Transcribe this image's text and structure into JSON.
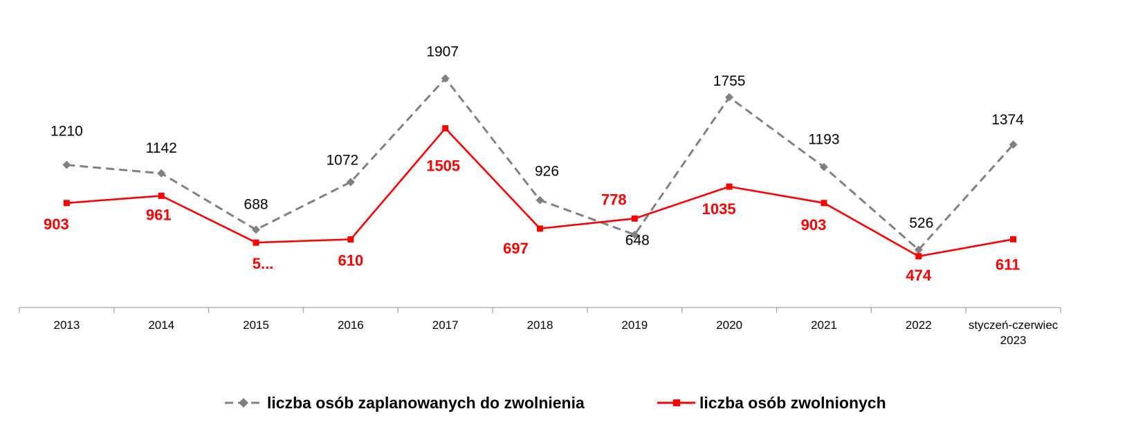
{
  "chart_data": {
    "type": "line",
    "title": "",
    "xlabel": "",
    "ylabel": "",
    "ylim": [
      0,
      2100
    ],
    "grid": false,
    "legend_position": "bottom",
    "categories": [
      [
        "2013"
      ],
      [
        "2014"
      ],
      [
        "2015"
      ],
      [
        "2016"
      ],
      [
        "2017"
      ],
      [
        "2018"
      ],
      [
        "2019"
      ],
      [
        "2020"
      ],
      [
        "2021"
      ],
      [
        "2022"
      ],
      [
        "styczeń-czerwiec",
        "2023"
      ]
    ],
    "series": [
      {
        "name": "liczba osób zaplanowanych do zwolnienia",
        "values": [
          1210,
          1142,
          688,
          1072,
          1907,
          926,
          648,
          1755,
          1193,
          526,
          1374
        ],
        "labels": [
          "1210",
          "1142",
          "688",
          "1072",
          "1907",
          "926",
          "648",
          "1755",
          "1193",
          "526",
          "1374"
        ],
        "color": "#808080",
        "line_style": "dashed",
        "marker": "diamond"
      },
      {
        "name": "liczba osób zwolnionych",
        "values": [
          903,
          961,
          584,
          610,
          1505,
          697,
          778,
          1035,
          903,
          474,
          611
        ],
        "labels": [
          "903",
          "961",
          "5...",
          "610",
          "1505",
          "697",
          "778",
          "1035",
          "903",
          "474",
          "611"
        ],
        "color": "#ff0000",
        "line_style": "solid",
        "marker": "square"
      }
    ]
  }
}
